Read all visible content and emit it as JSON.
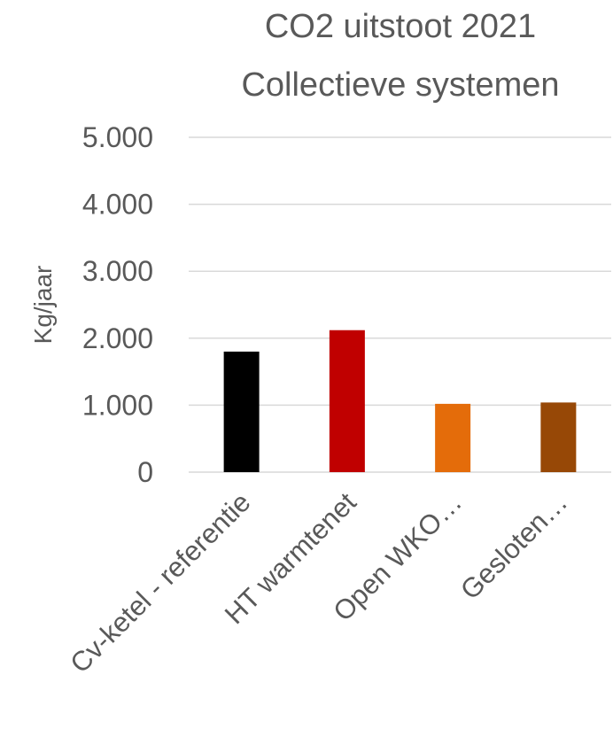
{
  "chart_data": {
    "type": "bar",
    "title_lines": [
      "CO2 uitstoot 2021",
      "Collectieve systemen"
    ],
    "xlabel": "",
    "ylabel": "Kg/jaar",
    "categories": [
      "Cv-ketel - referentie",
      "HT warmtenet",
      "Open WKO…",
      "Gesloten…"
    ],
    "values": [
      1800,
      2120,
      1020,
      1040
    ],
    "colors": [
      "#000000",
      "#c00000",
      "#e46c0a",
      "#974806"
    ],
    "ylim": [
      0,
      5000
    ],
    "yticks": [
      0,
      1000,
      2000,
      3000,
      4000,
      5000
    ],
    "ytick_labels": [
      "0",
      "1.000",
      "2.000",
      "3.000",
      "4.000",
      "5.000"
    ],
    "grid": true,
    "legend": "none"
  }
}
